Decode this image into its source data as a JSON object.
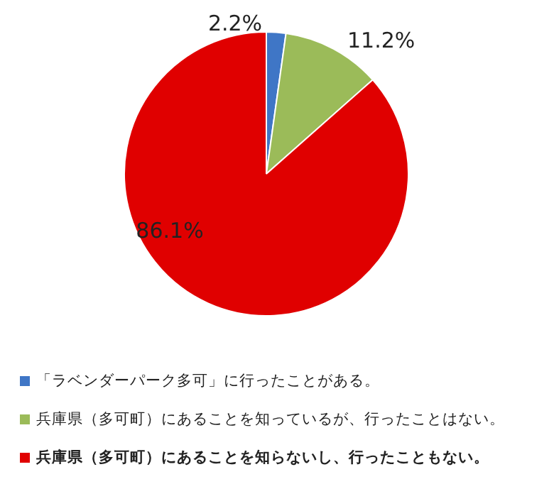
{
  "chart_data": {
    "type": "pie",
    "categories": [
      "「ラベンダーパーク多可」に行ったことがある。",
      "兵庫県（多可町）にあることを知っているが、行ったことはない。",
      "兵庫県（多可町）にあることを知らないし、行ったこともない。"
    ],
    "values": [
      2.2,
      11.2,
      86.1
    ],
    "value_labels": [
      "2.2%",
      "11.2%",
      "86.1%"
    ],
    "colors": [
      "#3f76c6",
      "#9bbb59",
      "#e00000"
    ],
    "legend": "bottom"
  }
}
